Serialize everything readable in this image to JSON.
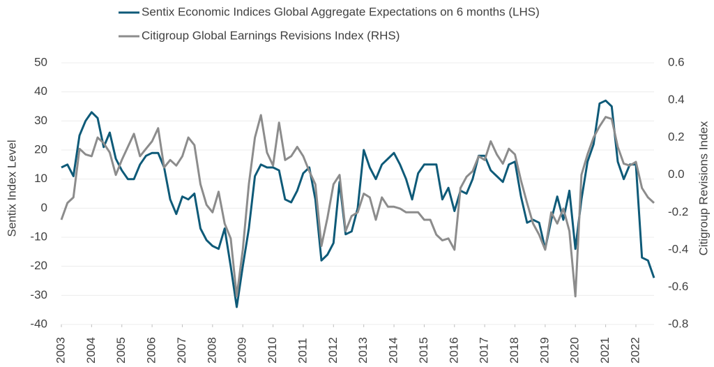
{
  "chart_data": {
    "type": "line",
    "ylabel": "Sentix Index Level",
    "y2label": "Citigroup Revisions Index",
    "x": [
      2003.0,
      2003.2,
      2003.4,
      2003.6,
      2003.8,
      2004.0,
      2004.2,
      2004.4,
      2004.6,
      2004.8,
      2005.0,
      2005.2,
      2005.4,
      2005.6,
      2005.8,
      2006.0,
      2006.2,
      2006.4,
      2006.6,
      2006.8,
      2007.0,
      2007.2,
      2007.4,
      2007.6,
      2007.8,
      2008.0,
      2008.2,
      2008.4,
      2008.6,
      2008.8,
      2009.0,
      2009.2,
      2009.4,
      2009.6,
      2009.8,
      2010.0,
      2010.2,
      2010.4,
      2010.6,
      2010.8,
      2011.0,
      2011.2,
      2011.4,
      2011.6,
      2011.8,
      2012.0,
      2012.2,
      2012.4,
      2012.6,
      2012.8,
      2013.0,
      2013.2,
      2013.4,
      2013.6,
      2013.8,
      2014.0,
      2014.2,
      2014.4,
      2014.6,
      2014.8,
      2015.0,
      2015.2,
      2015.4,
      2015.6,
      2015.8,
      2016.0,
      2016.2,
      2016.4,
      2016.6,
      2016.8,
      2017.0,
      2017.2,
      2017.4,
      2017.6,
      2017.8,
      2018.0,
      2018.2,
      2018.4,
      2018.6,
      2018.8,
      2019.0,
      2019.2,
      2019.4,
      2019.6,
      2019.8,
      2020.0,
      2020.2,
      2020.4,
      2020.6,
      2020.8,
      2021.0,
      2021.2,
      2021.4,
      2021.6,
      2021.8,
      2022.0,
      2022.2,
      2022.4,
      2022.6
    ],
    "series": [
      {
        "name": "Sentix Economic Indices Global Aggregate Expectations on 6 months (LHS)",
        "color": "#0e5a78",
        "axis": "y",
        "values": [
          14,
          15,
          11,
          25,
          30,
          33,
          31,
          21,
          26,
          17,
          13,
          10,
          10,
          15,
          18,
          19,
          19,
          14,
          3,
          -2,
          4,
          3,
          5,
          -7,
          -11,
          -13,
          -14,
          -7,
          -20,
          -34,
          -20,
          -7,
          11,
          15,
          14,
          14,
          13,
          3,
          2,
          6,
          12,
          14,
          3,
          -18,
          -16,
          -12,
          9,
          -9,
          -8,
          0,
          20,
          14,
          10,
          15,
          17,
          19,
          15,
          10,
          3,
          12,
          15,
          15,
          15,
          3,
          7,
          -1,
          6,
          5,
          10,
          18,
          18,
          13,
          11,
          9,
          15,
          16,
          4,
          -5,
          -4,
          -5,
          -14,
          -4,
          4,
          -4,
          6,
          -14,
          3,
          16,
          22,
          36,
          37,
          35,
          16,
          10,
          15,
          15,
          -17,
          -18,
          -24
        ]
      },
      {
        "name": "Citigroup Global Earnings Revisions Index (RHS)",
        "color": "#8c8c8c",
        "axis": "y2",
        "values": [
          -0.24,
          -0.15,
          -0.12,
          0.14,
          0.11,
          0.1,
          0.2,
          0.17,
          0.12,
          0.0,
          0.08,
          0.15,
          0.22,
          0.1,
          0.14,
          0.18,
          0.25,
          0.04,
          0.08,
          0.05,
          0.1,
          0.2,
          0.16,
          -0.05,
          -0.16,
          -0.2,
          -0.09,
          -0.26,
          -0.34,
          -0.65,
          -0.4,
          -0.05,
          0.2,
          0.32,
          0.12,
          0.05,
          0.28,
          0.08,
          0.1,
          0.15,
          0.1,
          0.02,
          -0.05,
          -0.38,
          -0.23,
          -0.05,
          0.0,
          -0.3,
          -0.22,
          -0.2,
          -0.1,
          -0.12,
          -0.24,
          -0.12,
          -0.17,
          -0.17,
          -0.18,
          -0.2,
          -0.2,
          -0.2,
          -0.24,
          -0.24,
          -0.32,
          -0.35,
          -0.34,
          -0.4,
          -0.07,
          -0.01,
          0.02,
          0.1,
          0.08,
          0.18,
          0.11,
          0.06,
          0.14,
          0.11,
          -0.03,
          -0.15,
          -0.26,
          -0.32,
          -0.4,
          -0.2,
          -0.26,
          -0.18,
          -0.3,
          -0.65,
          0.0,
          0.11,
          0.2,
          0.26,
          0.31,
          0.3,
          0.15,
          0.06,
          0.05,
          0.07,
          -0.07,
          -0.12,
          -0.15
        ]
      }
    ],
    "xlim": [
      2003,
      2022.6
    ],
    "xticks": [
      2003,
      2004,
      2005,
      2006,
      2007,
      2008,
      2009,
      2010,
      2011,
      2012,
      2013,
      2014,
      2015,
      2016,
      2017,
      2018,
      2019,
      2020,
      2021,
      2022
    ],
    "ylim": [
      -40,
      50
    ],
    "yticks": [
      -40,
      -30,
      -20,
      -10,
      0,
      10,
      20,
      30,
      40,
      50
    ],
    "y2lim": [
      -0.8,
      0.6
    ],
    "y2ticks": [
      -0.8,
      -0.6,
      -0.4,
      -0.2,
      0.0,
      0.2,
      0.4,
      0.6
    ],
    "grid": true,
    "legend": "top"
  }
}
